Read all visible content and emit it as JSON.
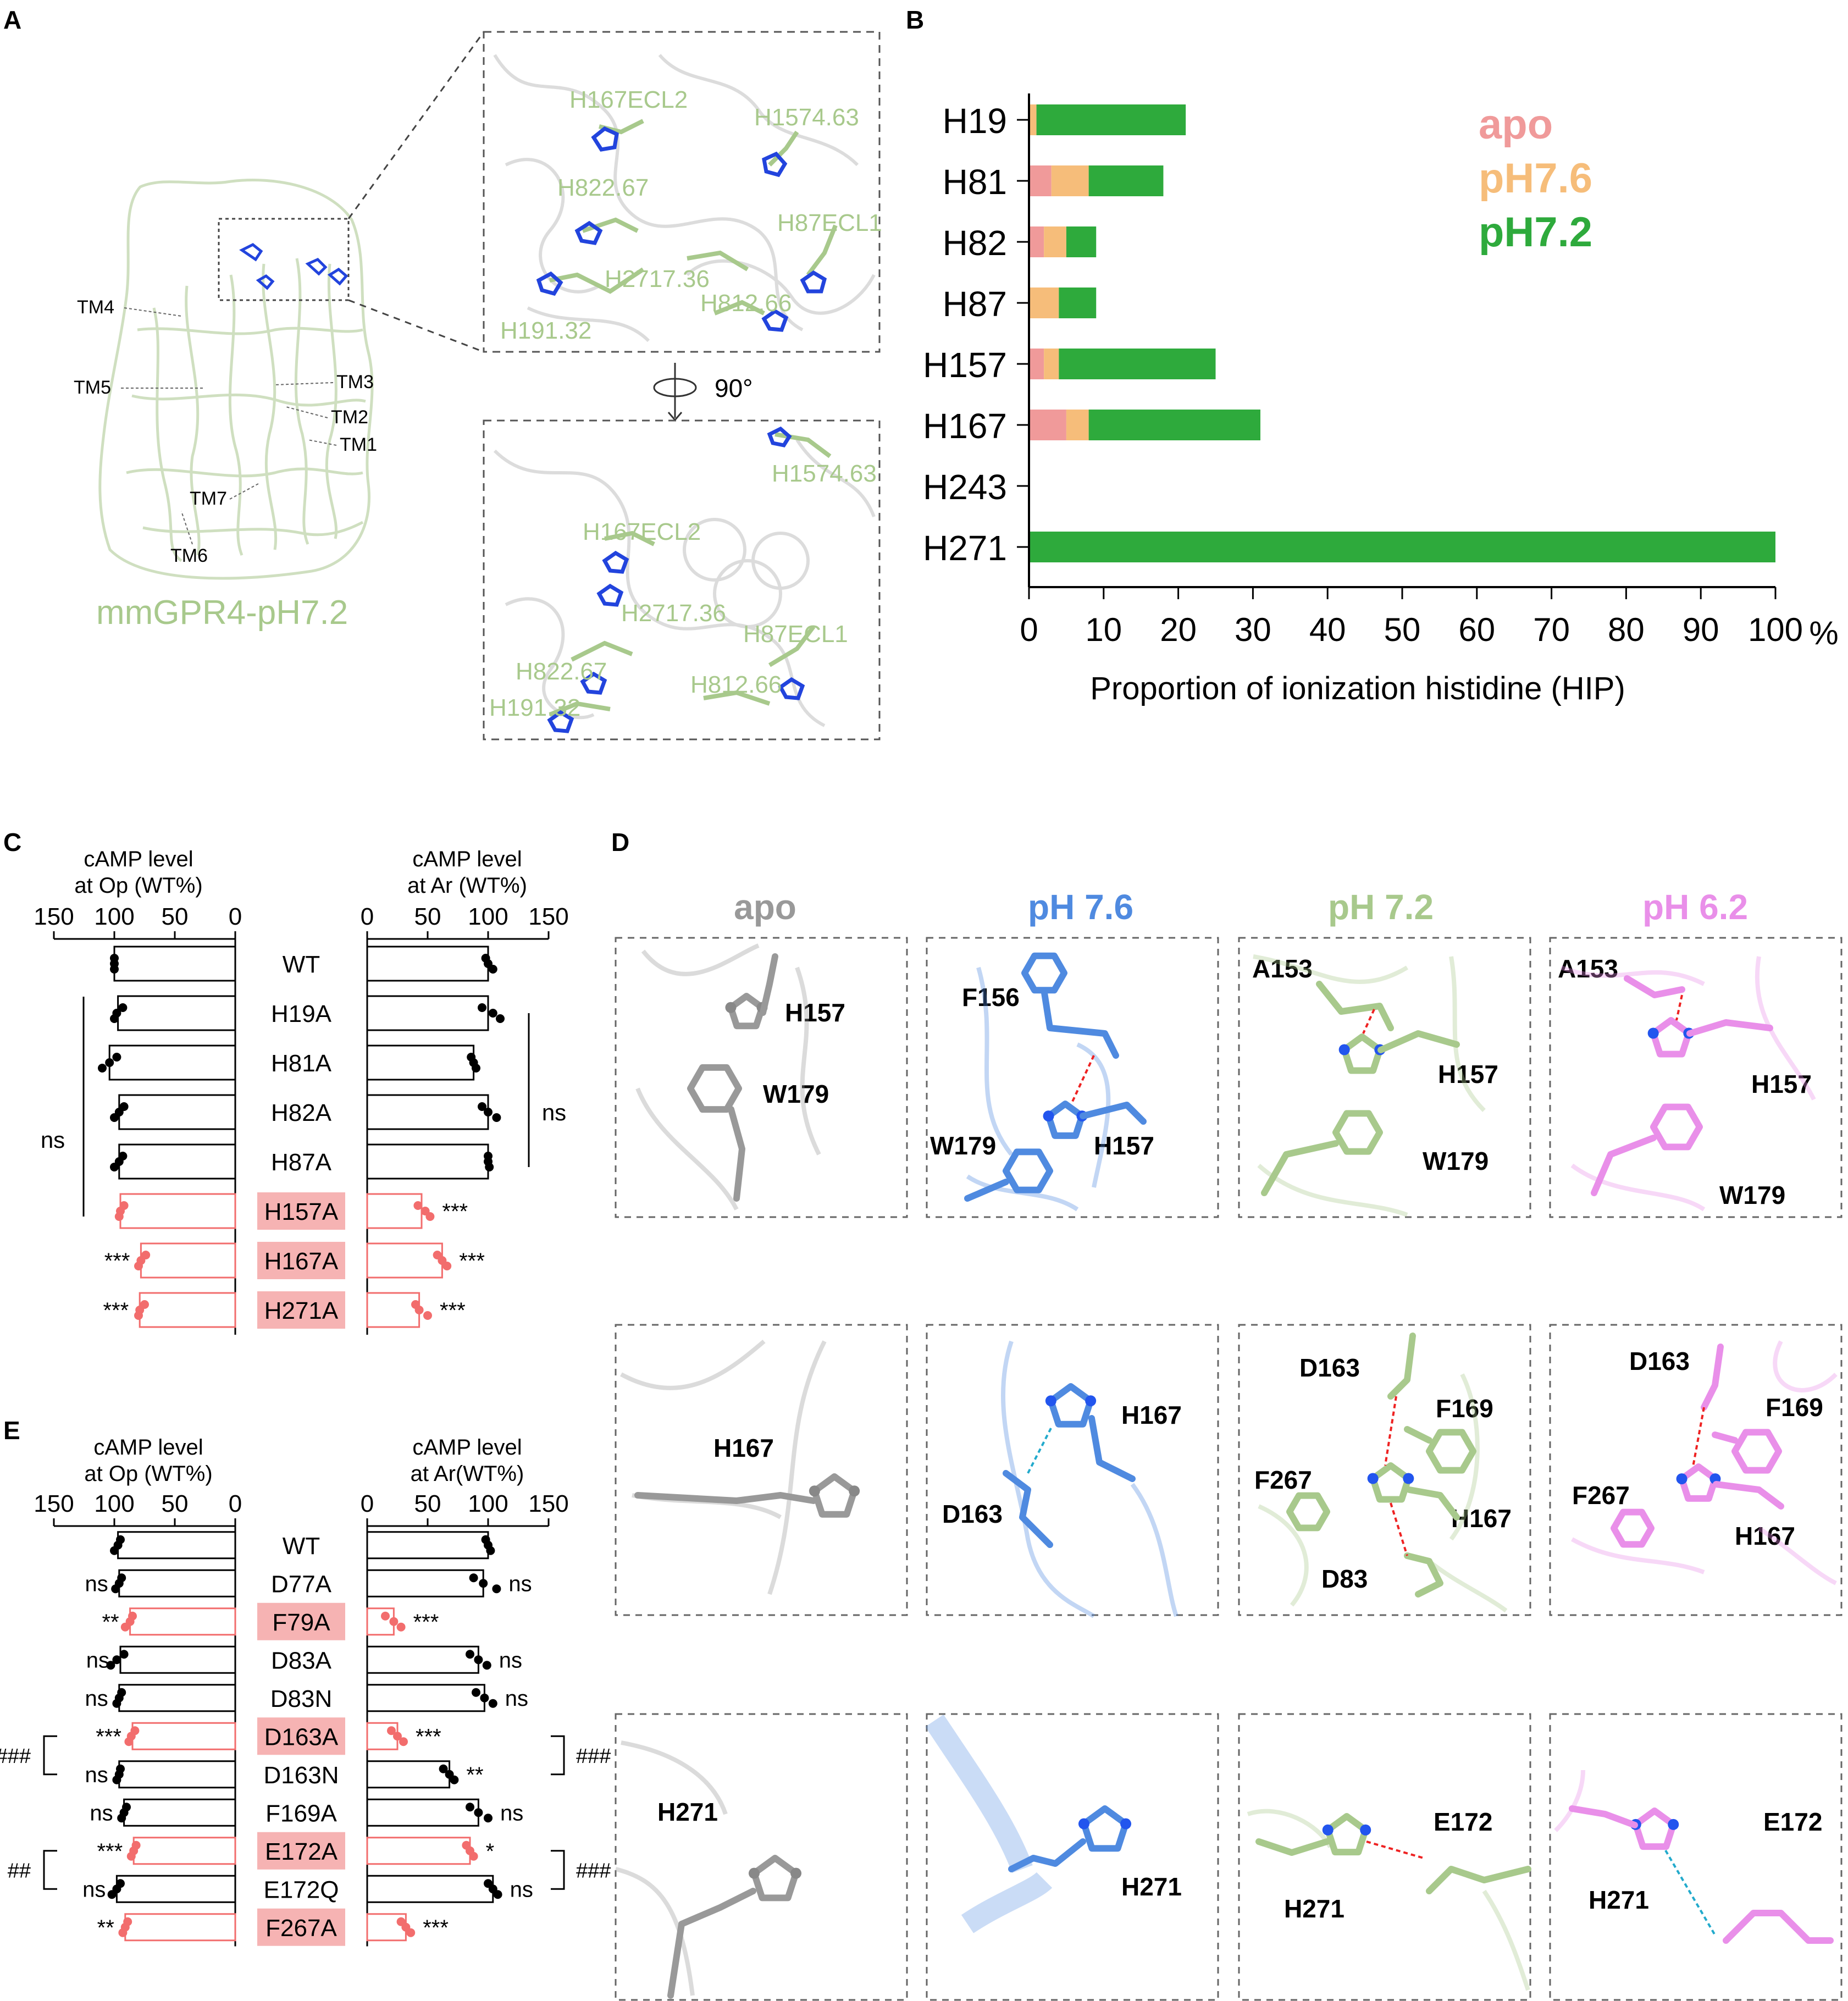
{
  "panels": {
    "A": "A",
    "B": "B",
    "C": "C",
    "D": "D",
    "E": "E"
  },
  "panel_a": {
    "caption": "mmGPR4-pH7.2",
    "tm_labels": [
      "TM4",
      "TM5",
      "TM3",
      "TM2",
      "TM1",
      "TM7",
      "TM6"
    ],
    "rotation": "90°",
    "zoom_top_labels": [
      "H167ECL2",
      "H1574.63",
      "H822.67",
      "H87ECL1",
      "H2717.36",
      "H812.66",
      "H191.32"
    ],
    "zoom_bottom_labels": [
      "H1574.63",
      "H167ECL2",
      "H2717.36",
      "H87ECL1",
      "H822.67",
      "H812.66",
      "H191.32"
    ],
    "colors": {
      "green": "#a8c98c",
      "blue": "#2244dd",
      "grey": "#cccccc"
    }
  },
  "chart_b": {
    "type": "bar",
    "orientation": "horizontal",
    "stacked": true,
    "categories": [
      "H19",
      "H81",
      "H82",
      "H87",
      "H157",
      "H167",
      "H243",
      "H271"
    ],
    "series": [
      {
        "name": "apo",
        "color": "#f09a9a",
        "values": [
          0,
          3,
          2,
          0,
          2,
          5,
          0,
          0
        ]
      },
      {
        "name": "pH7.6",
        "color": "#f6bd7a",
        "values": [
          1,
          5,
          3,
          4,
          2,
          3,
          0,
          0
        ]
      },
      {
        "name": "pH7.2",
        "color": "#2eaa3c",
        "values": [
          20,
          10,
          4,
          5,
          21,
          23,
          0,
          100
        ]
      }
    ],
    "xticks": [
      "0",
      "10",
      "20",
      "30",
      "40",
      "50",
      "60",
      "70",
      "80",
      "90",
      "100"
    ],
    "xunit": "%",
    "xlim": [
      0,
      100
    ],
    "xlabel": "Proportion of ionization histidine (HIP)"
  },
  "chart_c": {
    "type": "bar",
    "categories": [
      "WT",
      "H19A",
      "H81A",
      "H82A",
      "H87A",
      "H157A",
      "H167A",
      "H271A"
    ],
    "highlight": [
      false,
      false,
      false,
      false,
      false,
      true,
      true,
      true
    ],
    "left": {
      "label1": "cAMP level",
      "label2": "at Op (WT%)",
      "ticks": [
        "150",
        "100",
        "50",
        "0"
      ],
      "values": [
        100,
        97,
        104,
        96,
        96,
        95,
        78,
        79
      ],
      "dots": [
        [
          100,
          100,
          100
        ],
        [
          93,
          98,
          100
        ],
        [
          98,
          104,
          110
        ],
        [
          92,
          96,
          100
        ],
        [
          93,
          96,
          100
        ],
        [
          92,
          95,
          96
        ],
        [
          74,
          78,
          80
        ],
        [
          75,
          79,
          80
        ]
      ]
    },
    "right": {
      "label1": "cAMP level",
      "label2": "at Ar (WT%)",
      "ticks": [
        "0",
        "50",
        "100",
        "150"
      ],
      "values": [
        100,
        100,
        88,
        100,
        100,
        45,
        62,
        43
      ],
      "dots": [
        [
          98,
          100,
          104
        ],
        [
          95,
          104,
          110
        ],
        [
          86,
          88,
          90
        ],
        [
          95,
          100,
          107
        ],
        [
          100,
          100,
          101
        ],
        [
          42,
          48,
          52
        ],
        [
          58,
          62,
          66
        ],
        [
          40,
          43,
          50
        ]
      ]
    },
    "left_sig": [
      "",
      "",
      "",
      "",
      "",
      "",
      "***",
      "***"
    ],
    "right_sig": [
      "",
      "",
      "",
      "",
      "",
      "***",
      "***",
      "***"
    ],
    "left_bracket_label": "ns",
    "right_bracket_label": "ns"
  },
  "chart_e": {
    "type": "bar",
    "categories": [
      "WT",
      "D77A",
      "F79A",
      "D83A",
      "D83N",
      "D163A",
      "D163N",
      "F169A",
      "E172A",
      "E172Q",
      "F267A"
    ],
    "highlight": [
      false,
      false,
      true,
      false,
      false,
      true,
      false,
      false,
      true,
      false,
      true
    ],
    "left": {
      "label1": "cAMP level",
      "label2": "at Op (WT%)",
      "ticks": [
        "150",
        "100",
        "50",
        "0"
      ],
      "values": [
        97,
        96,
        87,
        95,
        96,
        85,
        96,
        92,
        84,
        98,
        91
      ],
      "dots": [
        [
          95,
          97,
          100
        ],
        [
          94,
          96,
          99
        ],
        [
          85,
          87,
          91
        ],
        [
          92,
          98,
          103
        ],
        [
          94,
          96,
          98
        ],
        [
          83,
          86,
          88
        ],
        [
          95,
          96,
          98
        ],
        [
          90,
          92,
          94
        ],
        [
          82,
          84,
          86
        ],
        [
          95,
          98,
          102
        ],
        [
          89,
          91,
          93
        ]
      ]
    },
    "right": {
      "label1": "cAMP level",
      "label2": "at Ar(WT%)",
      "ticks": [
        "0",
        "50",
        "100",
        "150"
      ],
      "values": [
        100,
        96,
        22,
        92,
        97,
        25,
        68,
        92,
        85,
        104,
        32
      ],
      "dots": [
        [
          98,
          100,
          102
        ],
        [
          88,
          96,
          107
        ],
        [
          15,
          22,
          28
        ],
        [
          85,
          92,
          99
        ],
        [
          90,
          97,
          104
        ],
        [
          20,
          25,
          30
        ],
        [
          63,
          68,
          72
        ],
        [
          85,
          92,
          100
        ],
        [
          82,
          85,
          88
        ],
        [
          100,
          104,
          108
        ],
        [
          28,
          32,
          36
        ]
      ]
    },
    "left_sig": [
      "",
      "ns",
      "**",
      "ns",
      "ns",
      "***",
      "ns",
      "ns",
      "***",
      "ns",
      "**"
    ],
    "right_sig": [
      "",
      "ns",
      "***",
      "ns",
      "ns",
      "***",
      "**",
      "ns",
      "*",
      "ns",
      "***"
    ],
    "left_brackets": [
      {
        "rows": [
          5,
          6
        ],
        "label": "###"
      },
      {
        "rows": [
          8,
          9
        ],
        "label": "##"
      }
    ],
    "right_brackets": [
      {
        "rows": [
          5,
          6
        ],
        "label": "###"
      },
      {
        "rows": [
          8,
          9
        ],
        "label": "###"
      }
    ]
  },
  "panel_d": {
    "columns": [
      {
        "title": "apo",
        "color": "#999999"
      },
      {
        "title": "pH 7.6",
        "color": "#4f8ae0"
      },
      {
        "title": "pH 7.2",
        "color": "#a8c98c"
      },
      {
        "title": "pH 6.2",
        "color": "#e98fe9"
      }
    ],
    "rows": [
      [
        [
          "H157",
          "W179"
        ],
        [
          "F156",
          "W179",
          "H157"
        ],
        [
          "A153",
          "H157",
          "W179"
        ],
        [
          "A153",
          "H157",
          "W179"
        ]
      ],
      [
        [
          "H167"
        ],
        [
          "H167",
          "D163"
        ],
        [
          "D163",
          "F169",
          "F267",
          "H167",
          "D83"
        ],
        [
          "D163",
          "F169",
          "F267",
          "H167"
        ]
      ],
      [
        [
          "H271"
        ],
        [
          "H271"
        ],
        [
          "E172",
          "H271"
        ],
        [
          "E172",
          "H271"
        ]
      ]
    ]
  }
}
